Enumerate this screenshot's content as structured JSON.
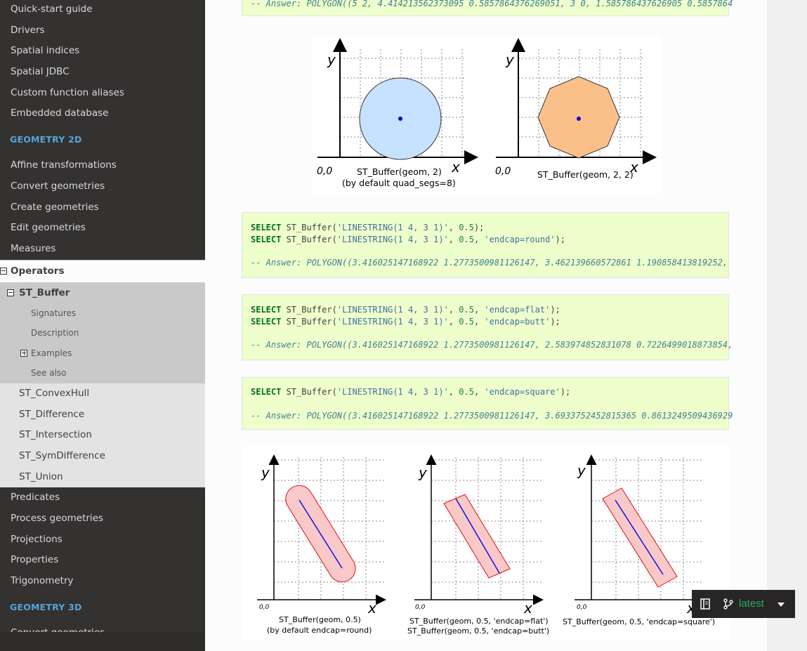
{
  "sidebar": {
    "top_items": [
      "Quick-start guide",
      "Drivers",
      "Spatial indices",
      "Spatial JDBC",
      "Custom function aliases",
      "Embedded database"
    ],
    "caption_2d": "GEOMETRY 2D",
    "items_2d": [
      "Affine transformations",
      "Convert geometries",
      "Create geometries",
      "Edit geometries",
      "Measures"
    ],
    "current": "Operators",
    "current_sub": "ST_Buffer",
    "current_sub_items": [
      "Signatures",
      "Description",
      "Examples",
      "See also"
    ],
    "operators_items": [
      "ST_ConvexHull",
      "ST_Difference",
      "ST_Intersection",
      "ST_SymDifference",
      "ST_Union"
    ],
    "items_after": [
      "Predicates",
      "Process geometries",
      "Projections",
      "Properties",
      "Trigonometry"
    ],
    "caption_3d": "GEOMETRY 3D",
    "items_3d": [
      "Convert geometries"
    ]
  },
  "code": {
    "top_answer": "-- Answer: POLYGON((5 2, 4.414213562373095 0.5857864376269051, 3 0, 1.585786437626905 0.5857864",
    "block1": {
      "l1": {
        "kw": "SELECT",
        "fn": " ST_Buffer(",
        "str": "'LINESTRING(1 4, 3 1)'",
        "sep": ", ",
        "num": "0.5",
        "end": ");"
      },
      "l2": {
        "kw": "SELECT",
        "fn": " ST_Buffer(",
        "str": "'LINESTRING(1 4, 3 1)'",
        "sep": ", ",
        "num": "0.5",
        "sep2": ", ",
        "str2": "'endcap=round'",
        "end": ");"
      },
      "answer": "-- Answer: POLYGON((3.416025147168922 1.2773500981126147, 3.462139660572861 1.190858413819252,"
    },
    "block2": {
      "l1": {
        "kw": "SELECT",
        "fn": " ST_Buffer(",
        "str": "'LINESTRING(1 4, 3 1)'",
        "sep": ", ",
        "num": "0.5",
        "sep2": ", ",
        "str2": "'endcap=flat'",
        "end": ");"
      },
      "l2": {
        "kw": "SELECT",
        "fn": " ST_Buffer(",
        "str": "'LINESTRING(1 4, 3 1)'",
        "sep": ", ",
        "num": "0.5",
        "sep2": ", ",
        "str2": "'endcap=butt'",
        "end": ");"
      },
      "answer": "-- Answer: POLYGON((3.416025147168922 1.2773500981126147, 2.583974852831078 0.7226499018873854,"
    },
    "block3": {
      "l1": {
        "kw": "SELECT",
        "fn": " ST_Buffer(",
        "str": "'LINESTRING(1 4, 3 1)'",
        "sep": ", ",
        "num": "0.5",
        "sep2": ", ",
        "str2": "'endcap=square'",
        "end": ");"
      },
      "answer": "-- Answer: POLYGON((3.416025147168922 1.2773500981126147, 3.6933752452815365 0.8613249509436929"
    }
  },
  "figure1": {
    "left": {
      "y": "y",
      "x": "x",
      "origin": "0,0",
      "cap1": "ST_Buffer(geom, 2)",
      "cap2": "(by default quad_segs=8)",
      "fill": "#c6e2ff"
    },
    "right": {
      "y": "y",
      "x": "x",
      "origin": "0,0",
      "cap1": "ST_Buffer(geom, 2, 2)",
      "fill": "#fbc08a"
    }
  },
  "figure2": {
    "a": {
      "y": "y",
      "x": "x",
      "origin": "0,0",
      "cap1": "ST_Buffer(geom, 0.5)",
      "cap2": "(by default endcap=round)"
    },
    "b": {
      "y": "y",
      "x": "x",
      "origin": "0,0",
      "cap1": "ST_Buffer(geom, 0.5, 'endcap=flat')",
      "cap2": "ST_Buffer(geom, 0.5, 'endcap=butt')"
    },
    "c": {
      "y": "y",
      "x": "x",
      "origin": "0,0",
      "cap1": "ST_Buffer(geom, 0.5, 'endcap=square')"
    },
    "fill": "#f9c9c9",
    "outline": "#e01010",
    "line": "#1010e0"
  },
  "version": {
    "label": "latest"
  },
  "colors": {
    "sidebar_bg": "#343131",
    "caption": "#55a5d9",
    "code_bg": "#eeffcc",
    "badge_green": "#27ae60"
  }
}
